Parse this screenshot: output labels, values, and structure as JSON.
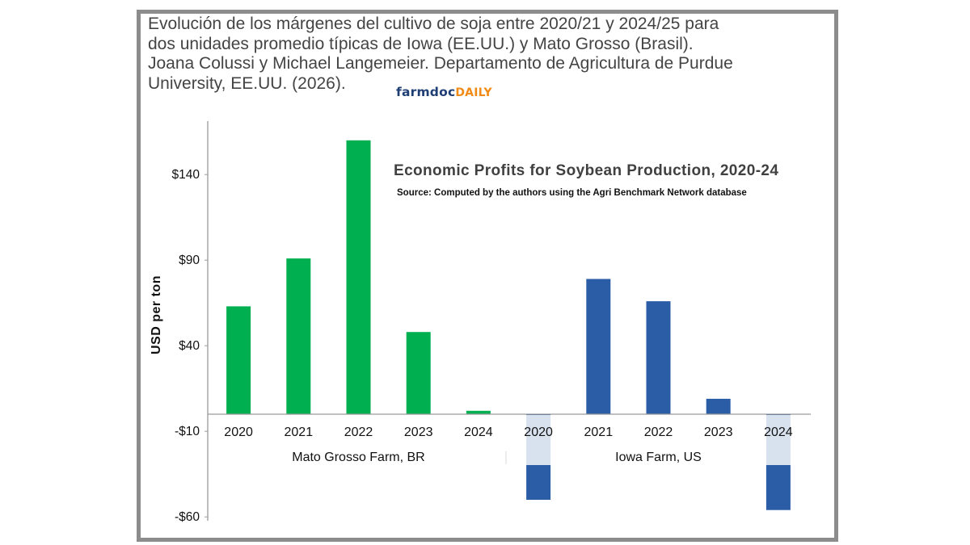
{
  "caption": {
    "lines": [
      "Evolución de los márgenes del cultivo de soja entre 2020/21 y 2024/25 para",
      "dos unidades promedio típicas de Iowa (EE.UU.) y Mato Grosso (Brasil).",
      "Joana Colussi y Michael Langemeier. Departamento de Agricultura de Purdue",
      "University, EE.UU. (2026)."
    ],
    "logo_part1": "farmdoc",
    "logo_part2": "DAILY"
  },
  "colors": {
    "green": "#00b050",
    "blue": "#2a5da6",
    "frame": "#8c8c8c",
    "logo_navy": "#1f3e73",
    "logo_orange": "#f28a16"
  },
  "chart_data": {
    "type": "bar",
    "title": "Economic Profits for Soybean Production, 2020-24",
    "subtitle": "Source: Computed by the authors using the Agri Benchmark Network database",
    "ylabel": "USD per ton",
    "ylim": [
      -60,
      174
    ],
    "yticks": [
      140,
      90,
      40,
      -10,
      -60
    ],
    "ytick_labels": [
      "$140",
      "$90",
      "$40",
      "-$10",
      "-$60"
    ],
    "groups": [
      {
        "name": "Mato Grosso Farm, BR",
        "color": "#00b050",
        "categories": [
          "2020",
          "2021",
          "2022",
          "2023",
          "2024"
        ],
        "values": [
          63,
          91,
          160,
          48,
          2
        ]
      },
      {
        "name": "Iowa Farm, US",
        "color": "#2a5da6",
        "categories": [
          "2020",
          "2021",
          "2022",
          "2023",
          "2024"
        ],
        "values": [
          -50,
          79,
          66,
          9,
          -56
        ]
      }
    ]
  }
}
